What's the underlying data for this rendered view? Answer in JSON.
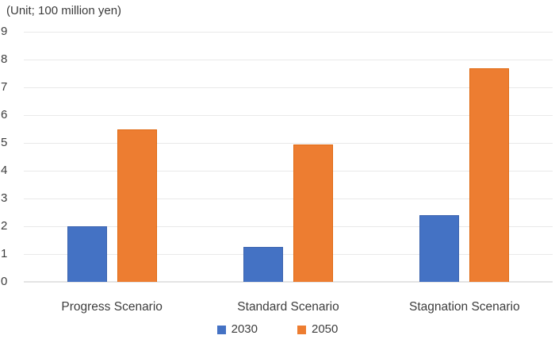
{
  "chart_data": {
    "type": "bar",
    "title": "(Unit; 100 million yen)",
    "categories": [
      "Progress Scenario",
      "Standard Scenario",
      "Stagnation Scenario"
    ],
    "series": [
      {
        "name": "2030",
        "color": "#4472C4",
        "border_color": "#3B63AE",
        "values": [
          2.0,
          1.25,
          2.4
        ]
      },
      {
        "name": "2050",
        "color": "#ED7D31",
        "border_color": "#E06A13",
        "values": [
          5.5,
          4.95,
          7.7
        ]
      }
    ],
    "xlabel": "",
    "ylabel": "",
    "ylim": [
      0,
      9
    ],
    "yticks": [
      0,
      1,
      2,
      3,
      4,
      5,
      6,
      7,
      8,
      9
    ],
    "grid": true,
    "legend_position": "bottom-center",
    "colors": {
      "grid": "#E9E9E9",
      "axis_line": "#E4E4E4",
      "text": "#3d3d3d",
      "background": "#ffffff"
    }
  }
}
